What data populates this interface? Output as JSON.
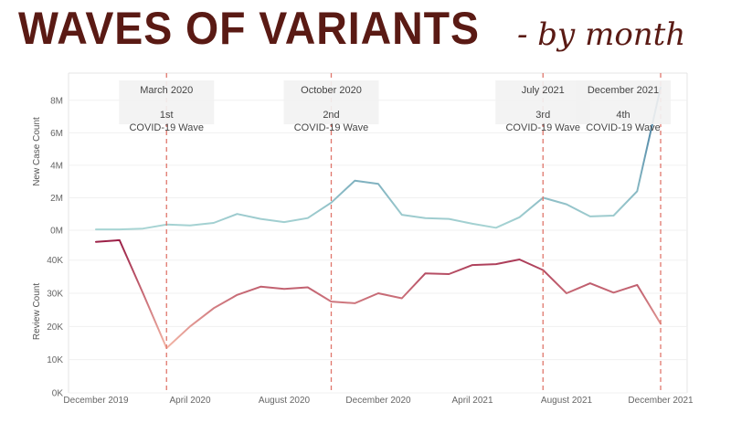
{
  "title": {
    "main": "WAVES OF VARIANTS",
    "sub": "- by month"
  },
  "chart_data": {
    "type": "line",
    "x": [
      "2019-12",
      "2020-01",
      "2020-02",
      "2020-03",
      "2020-04",
      "2020-05",
      "2020-06",
      "2020-07",
      "2020-08",
      "2020-09",
      "2020-10",
      "2020-11",
      "2020-12",
      "2021-01",
      "2021-02",
      "2021-03",
      "2021-04",
      "2021-05",
      "2021-06",
      "2021-07",
      "2021-08",
      "2021-09",
      "2021-10",
      "2021-11",
      "2021-12"
    ],
    "x_tick_labels": [
      "December 2019",
      "April 2020",
      "August 2020",
      "December 2020",
      "April 2021",
      "August 2021",
      "December 2021"
    ],
    "x_tick_months": [
      "2019-12",
      "2020-04",
      "2020-08",
      "2020-12",
      "2021-04",
      "2021-08",
      "2021-12"
    ],
    "panels": [
      {
        "ylabel": "New Case Count",
        "ylim": [
          0,
          9
        ],
        "y_ticks": [
          0,
          2,
          4,
          6,
          8
        ],
        "y_tick_labels": [
          "0M",
          "2M",
          "4M",
          "6M",
          "8M"
        ],
        "units": "millions",
        "color_low": "#a8d5d4",
        "color_high": "#2f6a96",
        "values": [
          0.05,
          0.05,
          0.1,
          0.35,
          0.3,
          0.45,
          1.0,
          0.7,
          0.5,
          0.75,
          1.7,
          3.05,
          2.85,
          0.95,
          0.75,
          0.7,
          0.4,
          0.15,
          0.8,
          2.0,
          1.6,
          0.85,
          0.9,
          2.4,
          8.8
        ]
      },
      {
        "ylabel": "Review Count",
        "ylim": [
          0,
          49
        ],
        "y_ticks": [
          0,
          10,
          20,
          30,
          40
        ],
        "y_tick_labels": [
          "0K",
          "10K",
          "20K",
          "30K",
          "40K"
        ],
        "units": "thousands",
        "color_low": "#f3b6a6",
        "color_high": "#9b1f46",
        "values": [
          45.5,
          46.0,
          30.0,
          13.5,
          20.0,
          25.5,
          29.5,
          32.0,
          31.3,
          31.8,
          27.5,
          27.0,
          30.0,
          28.5,
          36.0,
          35.8,
          38.5,
          38.8,
          40.2,
          37.0,
          30.0,
          33.0,
          30.2,
          32.5,
          20.8
        ]
      }
    ],
    "waves": [
      {
        "month": "2020-03",
        "label": "March 2020",
        "ordinal": "1st",
        "text": "COVID-19 Wave"
      },
      {
        "month": "2020-10",
        "label": "October 2020",
        "ordinal": "2nd",
        "text": "COVID-19 Wave"
      },
      {
        "month": "2021-07",
        "label": "July 2021",
        "ordinal": "3rd",
        "text": "COVID-19 Wave"
      },
      {
        "month": "2021-12",
        "label": "December 2021",
        "ordinal": "4th",
        "text": "COVID-19 Wave"
      }
    ],
    "wave_line_color": "#e0766c",
    "grid": true
  }
}
